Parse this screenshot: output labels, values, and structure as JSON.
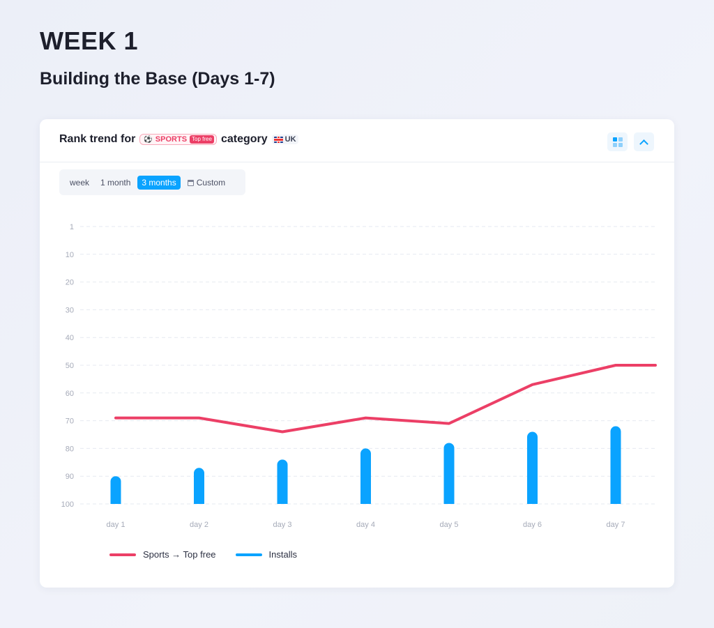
{
  "page": {
    "title": "WEEK 1",
    "subtitle": "Building the Base (Days 1-7)"
  },
  "card": {
    "title_prefix": "Rank trend for",
    "category_name": "SPORTS",
    "category_icon": "sports-icon",
    "chart_type_badge": "Top free",
    "title_suffix": "category",
    "country": "UK",
    "country_icon": "uk-flag-icon",
    "buttons": {
      "grid_icon": "grid-view-icon",
      "collapse_icon": "chevron-up-icon"
    }
  },
  "range_selector": {
    "options": [
      "week",
      "1 month",
      "3 months",
      "Custom"
    ],
    "selected": "3 months",
    "custom_icon": "calendar-icon"
  },
  "colors": {
    "rank_line": "#ec3f66",
    "installs_bar": "#0aa3ff",
    "accent": "#0aa3ff"
  },
  "chart_data": {
    "type": "line",
    "title": "",
    "xlabel": "",
    "ylabel": "",
    "y_inverted": true,
    "y_ticks": [
      1,
      10,
      20,
      30,
      40,
      50,
      60,
      70,
      80,
      90,
      100
    ],
    "ylim": [
      1,
      100
    ],
    "grid": true,
    "legend_position": "bottom-left",
    "categories": [
      "day 1",
      "day 2",
      "day 3",
      "day 4",
      "day 5",
      "day 6",
      "day 7"
    ],
    "series": [
      {
        "name": "Sports → Top free",
        "type": "line",
        "color": "#ec3f66",
        "values": [
          69,
          69,
          74,
          69,
          71,
          57,
          50
        ],
        "end_value": 50
      },
      {
        "name": "Installs",
        "type": "bar",
        "color": "#0aa3ff",
        "values": [
          90,
          87,
          84,
          80,
          78,
          74,
          72
        ]
      }
    ]
  }
}
